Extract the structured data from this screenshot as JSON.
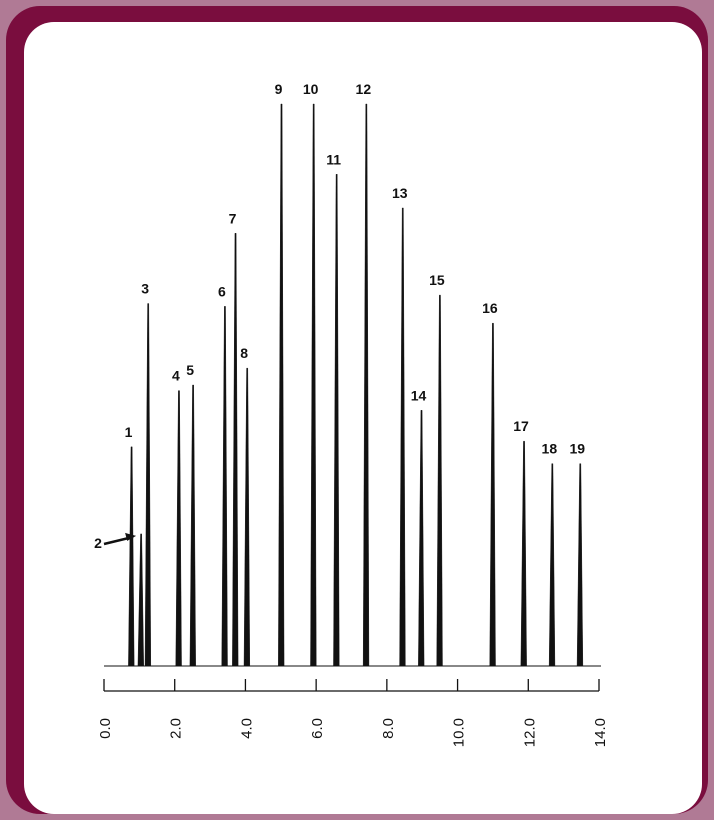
{
  "chart_data": {
    "type": "line",
    "title": "",
    "xlabel": "",
    "ylabel": "",
    "xlim": [
      0,
      14
    ],
    "x_ticks": [
      "0.0",
      "2.0",
      "4.0",
      "6.0",
      "8.0",
      "10.0",
      "12.0",
      "14.0"
    ],
    "grid": false,
    "peaks": [
      {
        "label": "1",
        "x": 0.78,
        "height": 0.39
      },
      {
        "label": "2",
        "x": 1.05,
        "height": 0.235
      },
      {
        "label": "3",
        "x": 1.25,
        "height": 0.645
      },
      {
        "label": "4",
        "x": 2.12,
        "height": 0.49
      },
      {
        "label": "5",
        "x": 2.52,
        "height": 0.5
      },
      {
        "label": "6",
        "x": 3.42,
        "height": 0.64
      },
      {
        "label": "7",
        "x": 3.72,
        "height": 0.77
      },
      {
        "label": "8",
        "x": 4.05,
        "height": 0.53
      },
      {
        "label": "9",
        "x": 5.02,
        "height": 1.0
      },
      {
        "label": "10",
        "x": 5.93,
        "height": 1.0
      },
      {
        "label": "11",
        "x": 6.58,
        "height": 0.875
      },
      {
        "label": "12",
        "x": 7.42,
        "height": 1.0
      },
      {
        "label": "13",
        "x": 8.45,
        "height": 0.815
      },
      {
        "label": "14",
        "x": 8.98,
        "height": 0.455
      },
      {
        "label": "15",
        "x": 9.5,
        "height": 0.66
      },
      {
        "label": "16",
        "x": 11.0,
        "height": 0.61
      },
      {
        "label": "17",
        "x": 11.88,
        "height": 0.4
      },
      {
        "label": "18",
        "x": 12.68,
        "height": 0.36
      },
      {
        "label": "19",
        "x": 13.47,
        "height": 0.36
      }
    ]
  },
  "colors": {
    "border": "#7a0d3e",
    "outer": "#b07a95",
    "panel": "#ffffff",
    "ink": "#111111"
  }
}
